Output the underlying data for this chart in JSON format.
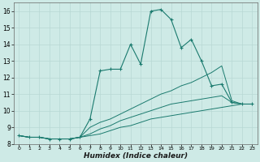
{
  "title": "",
  "xlabel": "Humidex (Indice chaleur)",
  "ylabel": "",
  "bg_color": "#ceeae6",
  "grid_color": "#b8d8d4",
  "line_color": "#1a7a6e",
  "xlim": [
    -0.5,
    23.5
  ],
  "ylim": [
    8.0,
    16.5
  ],
  "xticks": [
    0,
    1,
    2,
    3,
    4,
    5,
    6,
    7,
    8,
    9,
    10,
    11,
    12,
    13,
    14,
    15,
    16,
    17,
    18,
    19,
    20,
    21,
    22,
    23
  ],
  "yticks": [
    8,
    9,
    10,
    11,
    12,
    13,
    14,
    15,
    16
  ],
  "series": [
    {
      "x": [
        0,
        1,
        2,
        3,
        4,
        5,
        6,
        7,
        8,
        9,
        10,
        11,
        12,
        13,
        14,
        15,
        16,
        17,
        18,
        19,
        20,
        21,
        22,
        23
      ],
      "y": [
        8.5,
        8.4,
        8.4,
        8.3,
        8.3,
        8.3,
        8.4,
        9.5,
        12.4,
        12.5,
        12.5,
        14.0,
        12.8,
        16.0,
        16.1,
        15.5,
        13.8,
        14.3,
        13.0,
        11.5,
        11.6,
        10.5,
        10.4,
        10.4
      ],
      "marker": true
    },
    {
      "x": [
        0,
        1,
        2,
        3,
        4,
        5,
        6,
        7,
        8,
        9,
        10,
        11,
        12,
        13,
        14,
        15,
        16,
        17,
        18,
        19,
        20,
        21,
        22,
        23
      ],
      "y": [
        8.5,
        8.4,
        8.4,
        8.3,
        8.3,
        8.3,
        8.4,
        9.0,
        9.3,
        9.5,
        9.8,
        10.1,
        10.4,
        10.7,
        11.0,
        11.2,
        11.5,
        11.7,
        12.0,
        12.3,
        12.7,
        10.6,
        10.4,
        10.4
      ],
      "marker": false
    },
    {
      "x": [
        0,
        1,
        2,
        3,
        4,
        5,
        6,
        7,
        8,
        9,
        10,
        11,
        12,
        13,
        14,
        15,
        16,
        17,
        18,
        19,
        20,
        21,
        22,
        23
      ],
      "y": [
        8.5,
        8.4,
        8.4,
        8.3,
        8.3,
        8.3,
        8.4,
        8.6,
        8.9,
        9.1,
        9.4,
        9.6,
        9.8,
        10.0,
        10.2,
        10.4,
        10.5,
        10.6,
        10.7,
        10.8,
        10.9,
        10.5,
        10.4,
        10.4
      ],
      "marker": false
    },
    {
      "x": [
        0,
        1,
        2,
        3,
        4,
        5,
        6,
        7,
        8,
        9,
        10,
        11,
        12,
        13,
        14,
        15,
        16,
        17,
        18,
        19,
        20,
        21,
        22,
        23
      ],
      "y": [
        8.5,
        8.4,
        8.4,
        8.3,
        8.3,
        8.3,
        8.4,
        8.5,
        8.6,
        8.8,
        9.0,
        9.1,
        9.3,
        9.5,
        9.6,
        9.7,
        9.8,
        9.9,
        10.0,
        10.1,
        10.2,
        10.3,
        10.4,
        10.4
      ],
      "marker": false
    }
  ]
}
